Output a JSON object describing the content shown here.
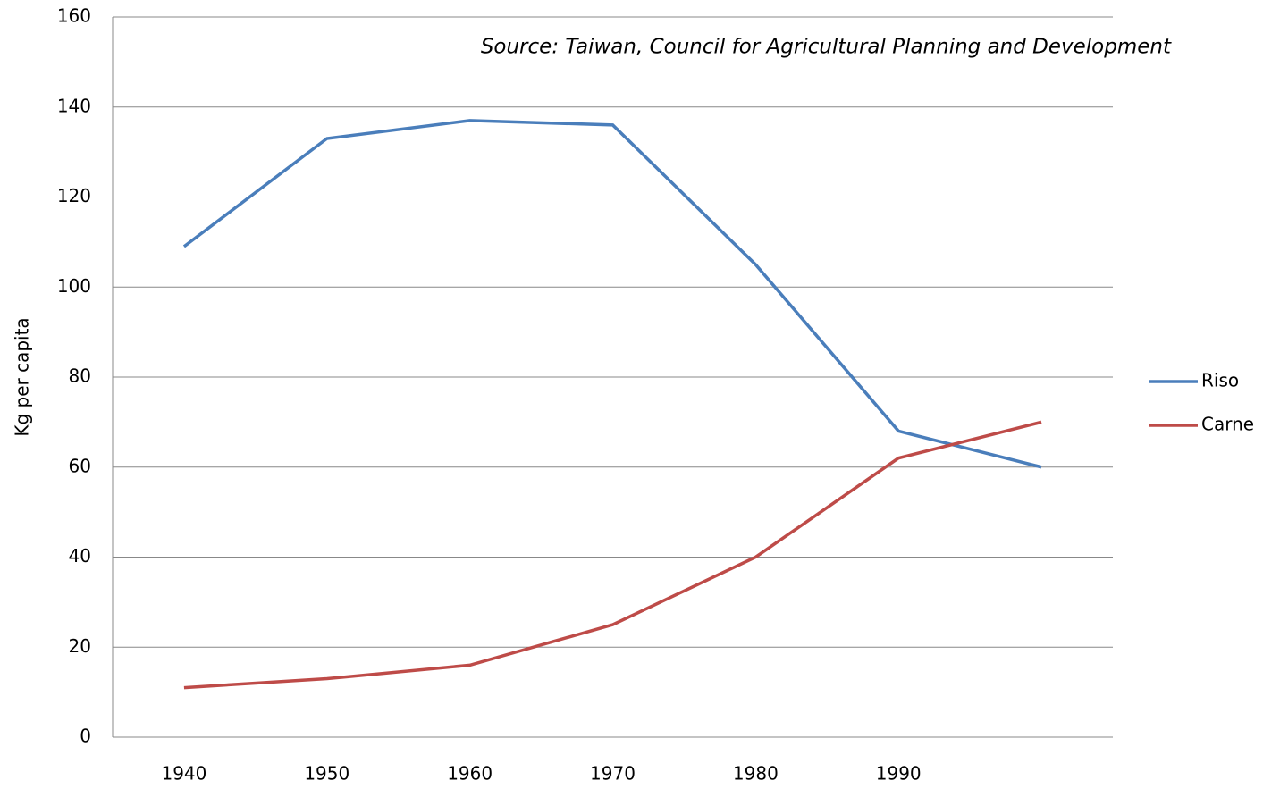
{
  "chart_data": {
    "type": "line",
    "annotation": "Source: Taiwan, Council for Agricultural Planning and Development",
    "y_label": "Kg per capita",
    "categories": [
      "1940",
      "1950",
      "1960",
      "1970",
      "1980",
      "1990",
      null
    ],
    "series": [
      {
        "name": "Riso",
        "color": "#4a7ebb",
        "values": [
          109,
          133,
          137,
          136,
          105,
          68,
          60
        ]
      },
      {
        "name": "Carne",
        "color": "#be4b48",
        "values": [
          11,
          13,
          16,
          25,
          40,
          62,
          70
        ]
      }
    ],
    "ylim": [
      0,
      160
    ],
    "yticks": [
      0,
      20,
      40,
      60,
      80,
      100,
      120,
      140,
      160
    ],
    "grid": true,
    "legend": "right"
  }
}
